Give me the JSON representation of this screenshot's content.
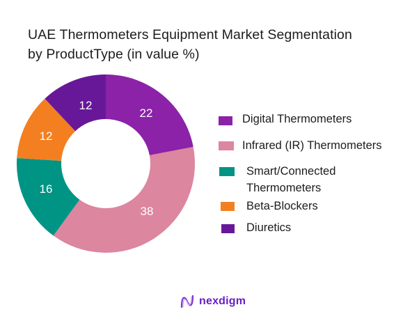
{
  "title": {
    "line1": "UAE Thermometers Equipment Market Segmentation",
    "line2": "by ProductType (in value %)"
  },
  "chart_data": {
    "type": "pie",
    "variant": "donut",
    "title": "UAE Thermometers Equipment Market Segmentation by ProductType (in value %)",
    "categories": [
      "Digital Thermometers",
      "Infrared (IR) Thermometers",
      "Smart/Connected Thermometers",
      "Beta-Blockers",
      "Diuretics"
    ],
    "values": [
      22,
      38,
      16,
      12,
      12
    ],
    "colors": [
      "#8B22A8",
      "#DC869F",
      "#009485",
      "#F47F20",
      "#671898"
    ],
    "unit": "%",
    "legend_position": "right",
    "data_labels": true
  },
  "legend": {
    "items": [
      {
        "label": "Digital Thermometers",
        "color": "#8B22A8"
      },
      {
        "label": "Infrared (IR) Thermometers",
        "color": "#DC869F"
      },
      {
        "label_line1": "Smart/Connected",
        "label_line2": "Thermometers",
        "color": "#009485"
      },
      {
        "label": "Beta-Blockers",
        "color": "#F47F20"
      },
      {
        "label": "Diuretics",
        "color": "#671898"
      }
    ]
  },
  "labels": {
    "digital": "22",
    "infrared": "38",
    "smart": "16",
    "beta": "12",
    "diuretics": "12"
  },
  "brand": {
    "name": "nexdigm",
    "color": "#6a1fc4"
  }
}
